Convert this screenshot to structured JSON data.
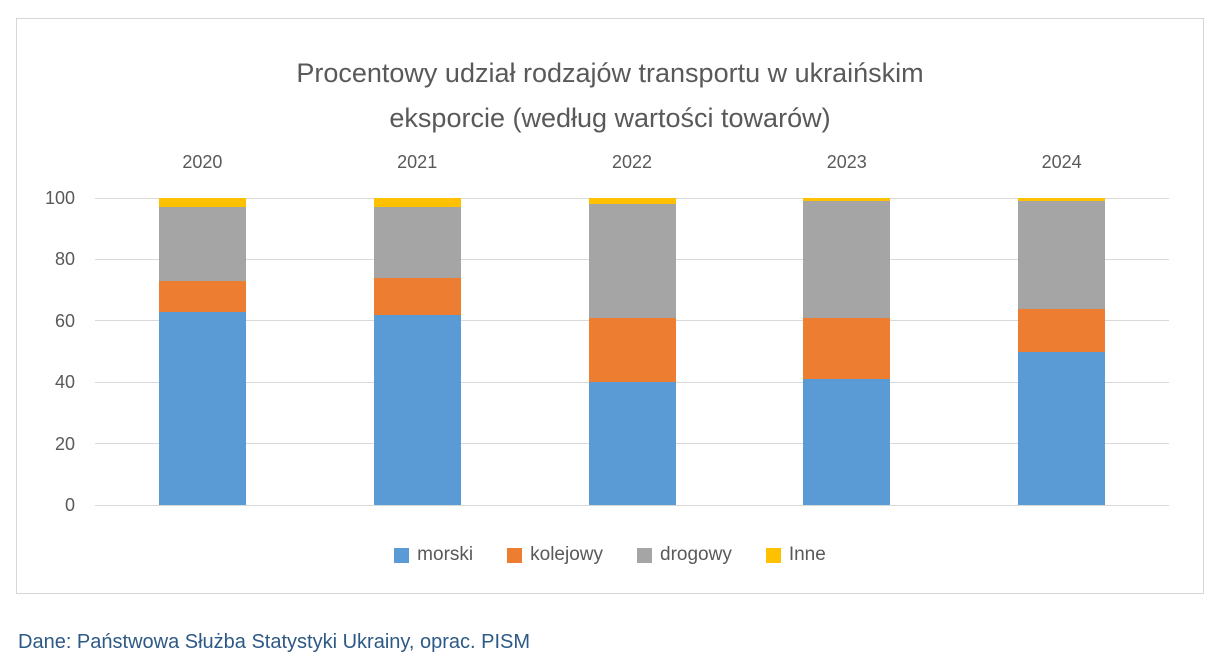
{
  "chart_data": {
    "type": "bar",
    "stacked": true,
    "title": "Procentowy udział rodzajów transportu w ukraińskim eksporcie (według wartości towarów)",
    "title_lines": [
      "Procentowy udział rodzajów transportu w ukraińskim",
      "eksporcie (według wartości towarów)"
    ],
    "categories": [
      "2020",
      "2021",
      "2022",
      "2023",
      "2024"
    ],
    "series": [
      {
        "name": "morski",
        "color": "#5b9bd5",
        "values": [
          63,
          62,
          40,
          41,
          50
        ]
      },
      {
        "name": "kolejowy",
        "color": "#ed7d31",
        "values": [
          10,
          12,
          21,
          20,
          14
        ]
      },
      {
        "name": "drogowy",
        "color": "#a5a5a5",
        "values": [
          24,
          23,
          37,
          38,
          35
        ]
      },
      {
        "name": "Inne",
        "color": "#ffc000",
        "values": [
          3,
          3,
          2,
          1,
          1
        ]
      }
    ],
    "yticks": [
      0,
      20,
      40,
      60,
      80,
      100
    ],
    "ylim": [
      0,
      100
    ],
    "grid": true,
    "legend_position": "bottom",
    "unit": "percent"
  },
  "colors": {
    "title_text": "#595959",
    "axis_text": "#595959",
    "gridline": "#d9d9d9",
    "frame_border": "#d6d6d6",
    "source_text": "#2d5986"
  },
  "footer": {
    "source_note": "Dane: Państwowa Służba Statystyki Ukrainy, oprac. PISM"
  }
}
